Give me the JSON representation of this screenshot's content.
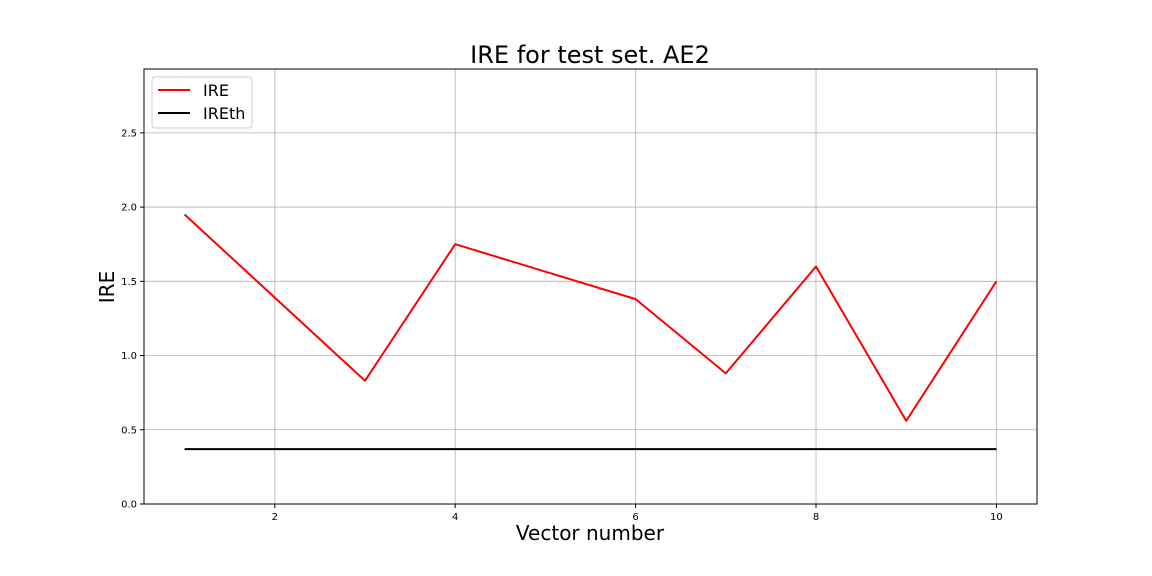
{
  "chart_data": {
    "type": "line",
    "title": "IRE for test set. AE2",
    "xlabel": "Vector number",
    "ylabel": "IRE",
    "xlim": [
      0.55,
      10.45
    ],
    "ylim": [
      0.0,
      2.93
    ],
    "x_ticks": [
      2,
      4,
      6,
      8,
      10
    ],
    "y_ticks": [
      0.0,
      0.5,
      1.0,
      1.5,
      2.0,
      2.5
    ],
    "x_tick_labels": [
      "2",
      "4",
      "6",
      "8",
      "10"
    ],
    "y_tick_labels": [
      "0.0",
      "0.5",
      "1.0",
      "1.5",
      "2.0",
      "2.5"
    ],
    "grid": true,
    "legend_position": "upper-left",
    "series": [
      {
        "name": "IRE",
        "color": "#ff0000",
        "x": [
          1,
          2,
          3,
          4,
          5,
          6,
          7,
          8,
          9,
          10
        ],
        "y": [
          1.95,
          1.39,
          0.83,
          1.75,
          1.565,
          1.38,
          0.88,
          1.6,
          0.56,
          1.5
        ]
      },
      {
        "name": "IREth",
        "color": "#000000",
        "x": [
          1,
          10
        ],
        "y": [
          0.37,
          0.37
        ]
      }
    ]
  }
}
